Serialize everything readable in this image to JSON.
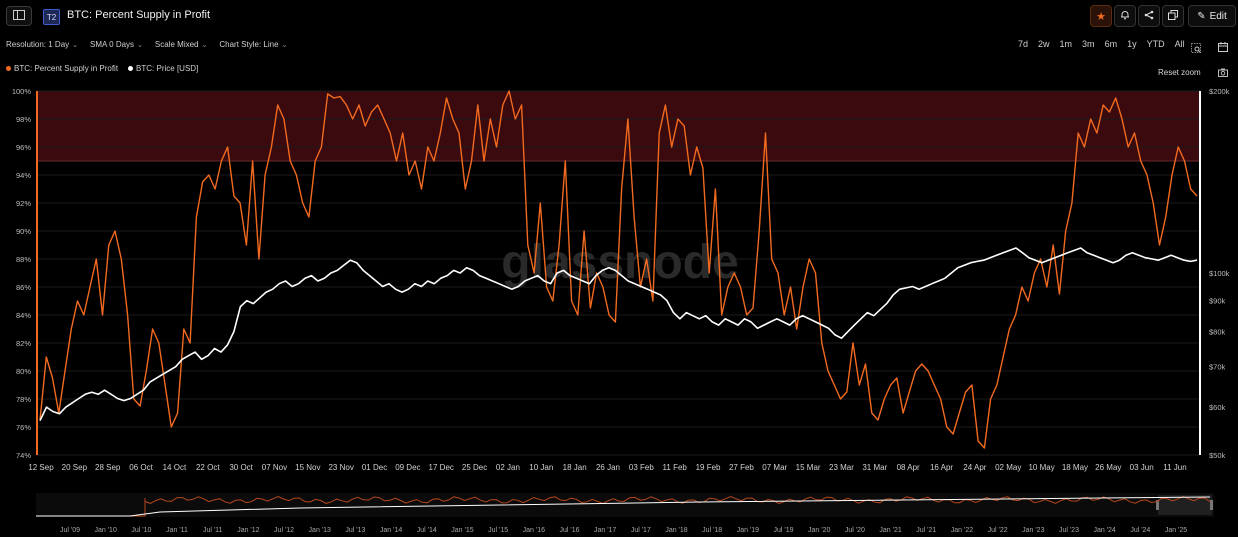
{
  "header": {
    "badge": "T2",
    "title": "BTC: Percent Supply in Profit",
    "edit_label": "Edit"
  },
  "controls": {
    "resolution": "Resolution: 1 Day",
    "sma": "SMA 0 Days",
    "scale": "Scale Mixed",
    "chart_style": "Chart Style: Line"
  },
  "ranges": [
    "7d",
    "2w",
    "1m",
    "3m",
    "6m",
    "1y",
    "YTD",
    "All"
  ],
  "legend": {
    "series1": "BTC: Percent Supply in Profit",
    "series2": "BTC: Price [USD]"
  },
  "reset_zoom": "Reset zoom",
  "watermark": "glassnode",
  "colors": {
    "supply": "#f26a1f",
    "price": "#ffffff",
    "zone": "#3a0a0e",
    "zone_line": "#6b2a2a"
  },
  "icons": [
    "sidebar-toggle-icon",
    "star-icon",
    "bell-icon",
    "share-icon",
    "copy-icon",
    "pencil-icon",
    "calendar-icon",
    "zoom-select-icon",
    "camera-icon"
  ],
  "chart_data": {
    "type": "line",
    "x_ticks": [
      "12 Sep",
      "20 Sep",
      "28 Sep",
      "06 Oct",
      "14 Oct",
      "22 Oct",
      "30 Oct",
      "07 Nov",
      "15 Nov",
      "23 Nov",
      "01 Dec",
      "09 Dec",
      "17 Dec",
      "25 Dec",
      "02 Jan",
      "10 Jan",
      "18 Jan",
      "26 Jan",
      "03 Feb",
      "11 Feb",
      "19 Feb",
      "27 Feb",
      "07 Mar",
      "15 Mar",
      "23 Mar",
      "31 Mar",
      "08 Apr",
      "16 Apr",
      "24 Apr",
      "02 May",
      "10 May",
      "18 May",
      "26 May",
      "03 Jun",
      "11 Jun"
    ],
    "y_left_ticks": [
      "100%",
      "98%",
      "96%",
      "94%",
      "92%",
      "90%",
      "88%",
      "86%",
      "84%",
      "82%",
      "80%",
      "78%",
      "76%",
      "74%"
    ],
    "y_left_range": [
      74,
      100
    ],
    "y_right_ticks": [
      "$200k",
      "$100k",
      "$90k",
      "$80k",
      "$70k",
      "$60k",
      "$50k"
    ],
    "y_right_range": [
      50000,
      200000
    ],
    "y_right_scale": "log",
    "zone": {
      "from": 95,
      "to": 100
    },
    "series": [
      {
        "name": "BTC: Percent Supply in Profit",
        "axis": "left",
        "values": [
          76.5,
          81,
          79.5,
          77,
          80,
          83,
          85,
          84,
          86,
          88,
          84,
          89,
          90,
          88,
          84,
          78,
          77.5,
          80,
          83,
          82,
          79,
          76,
          77,
          83,
          82,
          91,
          93.5,
          94,
          93,
          95,
          96,
          92.5,
          92,
          89,
          95,
          88,
          94,
          96,
          99,
          98,
          95,
          94,
          92,
          91,
          95,
          96,
          99.8,
          99.5,
          99.6,
          99,
          98,
          99,
          97.5,
          98.5,
          99,
          98,
          97,
          95,
          97,
          94,
          95,
          93,
          96,
          95,
          97,
          99.5,
          98,
          97,
          93,
          95,
          99,
          95,
          98,
          96,
          99,
          100,
          98,
          99,
          89,
          87,
          92,
          86,
          85,
          89,
          95,
          85,
          84,
          90,
          84.5,
          87,
          86,
          84,
          83.5,
          93,
          98,
          91,
          86,
          88,
          85,
          97,
          99,
          96,
          98,
          97.5,
          94,
          96,
          94.5,
          87,
          93,
          84,
          86,
          87,
          86,
          84,
          84.5,
          90,
          97,
          88,
          87,
          84,
          86,
          83,
          86,
          88,
          87,
          82,
          80,
          79,
          78,
          78.5,
          82,
          79,
          80.5,
          77,
          76.5,
          78,
          79,
          79.5,
          77,
          78.5,
          80,
          80.5,
          80,
          79,
          78,
          76,
          75.5,
          77,
          78.5,
          79,
          75,
          74.5,
          78,
          79,
          81,
          83,
          84,
          86,
          85,
          87,
          88,
          86,
          89,
          85.5,
          90,
          92,
          97,
          96,
          98,
          97,
          99,
          98.5,
          99.5,
          98,
          96,
          97,
          95,
          94,
          92,
          89,
          91,
          94,
          96,
          95,
          93,
          92.5
        ]
      },
      {
        "name": "BTC: Price [USD]",
        "axis": "right",
        "values": [
          57000,
          60000,
          59000,
          58500,
          60000,
          61000,
          62000,
          63000,
          63500,
          63000,
          64000,
          63000,
          62000,
          61500,
          62000,
          63000,
          64000,
          66000,
          67000,
          68000,
          69000,
          70000,
          72000,
          73000,
          74000,
          72000,
          73000,
          75000,
          74000,
          76000,
          80000,
          88000,
          90000,
          89000,
          91000,
          93000,
          94000,
          96000,
          97000,
          95000,
          96000,
          98000,
          99000,
          97000,
          98000,
          100000,
          101000,
          103000,
          105000,
          104000,
          101000,
          99000,
          97000,
          95000,
          96000,
          94000,
          93000,
          94000,
          96000,
          95000,
          97000,
          96000,
          98000,
          99000,
          101000,
          100000,
          102000,
          101000,
          99000,
          98000,
          97000,
          96000,
          95000,
          94000,
          95000,
          97000,
          98000,
          99000,
          97000,
          96000,
          100000,
          101000,
          99000,
          98000,
          97000,
          96000,
          99000,
          101000,
          102000,
          101000,
          99000,
          97000,
          96000,
          95000,
          94000,
          93000,
          92000,
          90000,
          86000,
          84000,
          86000,
          85000,
          84000,
          85000,
          83000,
          82000,
          84000,
          83000,
          82000,
          84000,
          83000,
          81000,
          82000,
          83000,
          84000,
          83000,
          82000,
          84000,
          85000,
          84000,
          83000,
          82000,
          81000,
          79000,
          78000,
          80000,
          82000,
          84000,
          86000,
          85000,
          87000,
          89000,
          92000,
          94000,
          94500,
          95000,
          94000,
          95000,
          96000,
          97000,
          98000,
          100000,
          102000,
          103000,
          104000,
          104500,
          105000,
          106000,
          107000,
          108000,
          109000,
          110000,
          108000,
          106000,
          105000,
          104000,
          105000,
          106000,
          107000,
          108000,
          109000,
          110000,
          108000,
          107000,
          106000,
          105000,
          104000,
          105000,
          107000,
          108000,
          107000,
          106000,
          105500,
          105000,
          106000,
          107000,
          106000,
          105000,
          104500,
          105000
        ]
      }
    ],
    "navigator_ticks": [
      "Jul '09",
      "Jan '10",
      "Jul '10",
      "Jan '11",
      "Jul '11",
      "Jan '12",
      "Jul '12",
      "Jan '13",
      "Jul '13",
      "Jan '14",
      "Jul '14",
      "Jan '15",
      "Jul '15",
      "Jan '16",
      "Jul '16",
      "Jan '17",
      "Jul '17",
      "Jan '18",
      "Jul '18",
      "Jan '19",
      "Jul '19",
      "Jan '20",
      "Jul '20",
      "Jan '21",
      "Jul '21",
      "Jan '22",
      "Jul '22",
      "Jan '23",
      "Jul '23",
      "Jan '24",
      "Jul '24",
      "Jan '25"
    ],
    "grid": true
  }
}
